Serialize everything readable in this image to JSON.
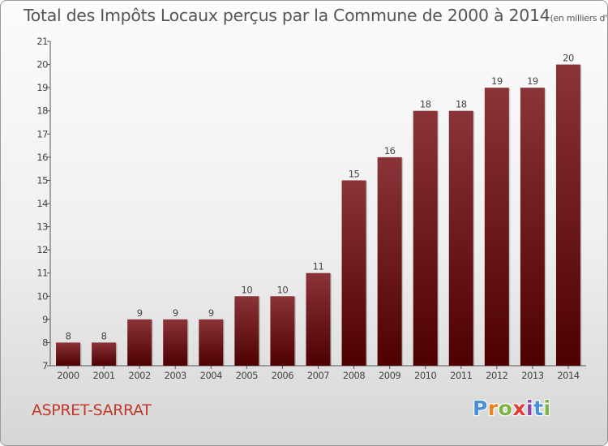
{
  "header": {
    "title": "Total des Impôts Locaux perçus par la Commune de 2000 à 2014",
    "unit": "(en milliers d'€)"
  },
  "footer": {
    "commune": "ASPRET-SARRAT",
    "logo": "Proxiti"
  },
  "colors": {
    "bar_top": "#8a3438",
    "bar_bottom": "#4e0000",
    "commune_text": "#c0392b",
    "logo_letters": [
      "#4a90d9",
      "#e8832a",
      "#7cb342",
      "#e53935",
      "#8e44ad",
      "#4a90d9",
      "#7cb342"
    ]
  },
  "chart_data": {
    "type": "bar",
    "categories": [
      "2000",
      "2001",
      "2002",
      "2003",
      "2004",
      "2005",
      "2006",
      "2007",
      "2008",
      "2009",
      "2010",
      "2011",
      "2012",
      "2013",
      "2014"
    ],
    "values": [
      8,
      8,
      9,
      9,
      9,
      10,
      10,
      11,
      15,
      16,
      18,
      18,
      19,
      19,
      20
    ],
    "data_labels": [
      "8",
      "8",
      "9",
      "9",
      "9",
      "10",
      "10",
      "11",
      "15",
      "16",
      "18",
      "18",
      "19",
      "19",
      "20"
    ],
    "ylim": [
      7,
      21
    ],
    "yticks": [
      7,
      8,
      9,
      10,
      11,
      12,
      13,
      14,
      15,
      16,
      17,
      18,
      19,
      20,
      21
    ],
    "grid": false,
    "xlabel": "",
    "ylabel": ""
  }
}
